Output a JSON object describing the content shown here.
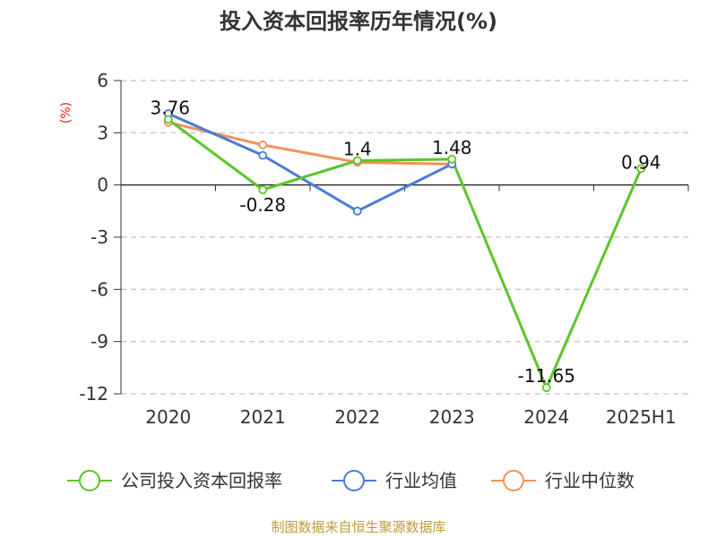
{
  "chart_data": {
    "type": "line",
    "title": "投入资本回报率历年情况(%)",
    "ylabel": "(%)",
    "categories": [
      "2020",
      "2021",
      "2022",
      "2023",
      "2024",
      "2025H1"
    ],
    "ylim": [
      -12,
      6
    ],
    "yticks": [
      6,
      3,
      0,
      -3,
      -6,
      -9,
      -12
    ],
    "grid": true,
    "legend_position": "bottom",
    "series": [
      {
        "name": "公司投入资本回报率",
        "color": "#5ac62a",
        "values": [
          3.76,
          -0.28,
          1.4,
          1.48,
          -11.65,
          0.94
        ],
        "labels": [
          "3.76",
          "-0.28",
          "1.4",
          "1.48",
          "-11.65",
          "0.94"
        ]
      },
      {
        "name": "行业均值",
        "color": "#4b7bd8",
        "values": [
          4.1,
          1.7,
          -1.5,
          1.2,
          null,
          null
        ]
      },
      {
        "name": "行业中位数",
        "color": "#f59157",
        "values": [
          3.6,
          2.3,
          1.3,
          1.2,
          null,
          null
        ]
      }
    ]
  },
  "source": "制图数据来自恒生聚源数据库"
}
